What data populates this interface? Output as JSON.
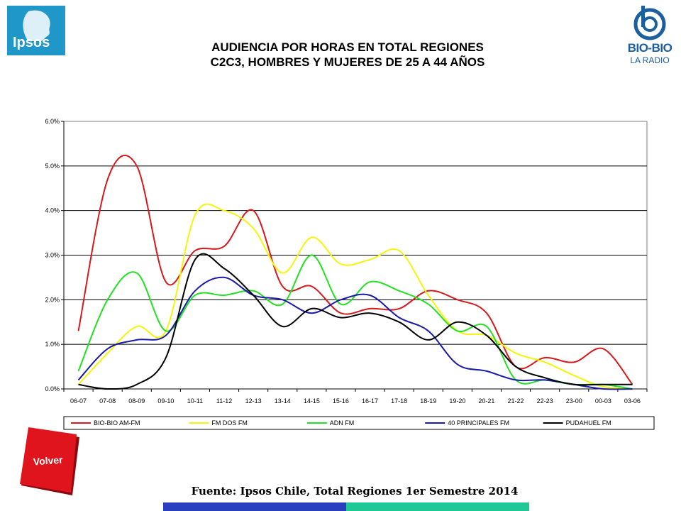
{
  "logos": {
    "ipsos": "Ipsos",
    "bio_name": "BIO-BIO",
    "bio_sub": "LA RADIO"
  },
  "title_lines": [
    "AUDIENCIA POR HORAS EN TOTAL REGIONES",
    "C2C3, HOMBRES Y MUJERES DE 25 A 44 AÑOS"
  ],
  "volver_label": "Volver",
  "source": "Fuente: Ipsos Chile, Total Regiones 1er Semestre 2014",
  "colors": {
    "accent_blue": "#2a3fbf",
    "accent_green": "#1fc895",
    "volver_red": "#e0141c"
  },
  "chart_data": {
    "type": "line",
    "title": "",
    "xlabel": "",
    "ylabel": "",
    "ylim": [
      0,
      6
    ],
    "y_ticks": [
      "0.0%",
      "1.0%",
      "2.0%",
      "3.0%",
      "4.0%",
      "5.0%",
      "6.0%"
    ],
    "grid": true,
    "legend_position": "bottom",
    "categories": [
      "06-07",
      "07-08",
      "08-09",
      "09-10",
      "10-11",
      "11-12",
      "12-13",
      "13-14",
      "14-15",
      "15-16",
      "16-17",
      "17-18",
      "18-19",
      "19-20",
      "20-21",
      "21-22",
      "22-23",
      "23-00",
      "00-03",
      "03-06"
    ],
    "series": [
      {
        "name": "BIO-BIO AM-FM",
        "color": "#d7191c",
        "values": [
          1.3,
          4.7,
          5.0,
          2.4,
          3.1,
          3.2,
          4.0,
          2.3,
          2.3,
          1.7,
          1.8,
          1.8,
          2.2,
          2.0,
          1.7,
          0.5,
          0.7,
          0.6,
          0.9,
          0.1
        ]
      },
      {
        "name": "FM DOS FM",
        "color": "#f5f50a",
        "values": [
          0.1,
          0.8,
          1.4,
          1.3,
          3.9,
          4.0,
          3.6,
          2.6,
          3.4,
          2.8,
          2.9,
          3.1,
          2.1,
          1.3,
          1.2,
          0.8,
          0.6,
          0.3,
          0.05,
          0.0
        ]
      },
      {
        "name": "ADN FM",
        "color": "#22e022",
        "values": [
          0.4,
          2.0,
          2.6,
          1.3,
          2.1,
          2.1,
          2.2,
          1.9,
          3.0,
          1.9,
          2.4,
          2.2,
          1.9,
          1.3,
          1.4,
          0.2,
          0.2,
          0.1,
          0.1,
          0.0
        ]
      },
      {
        "name": "40 PRINCIPALES FM",
        "color": "#1a1aa8",
        "values": [
          0.2,
          0.9,
          1.1,
          1.2,
          2.2,
          2.5,
          2.1,
          2.0,
          1.7,
          2.0,
          2.1,
          1.6,
          1.3,
          0.55,
          0.4,
          0.2,
          0.2,
          0.1,
          0.0,
          0.0
        ]
      },
      {
        "name": "PUDAHUEL FM",
        "color": "#000000",
        "values": [
          0.1,
          0.0,
          0.1,
          0.7,
          2.9,
          2.7,
          2.1,
          1.4,
          1.8,
          1.6,
          1.7,
          1.5,
          1.1,
          1.5,
          1.2,
          0.5,
          0.25,
          0.1,
          0.1,
          0.1
        ]
      }
    ]
  }
}
